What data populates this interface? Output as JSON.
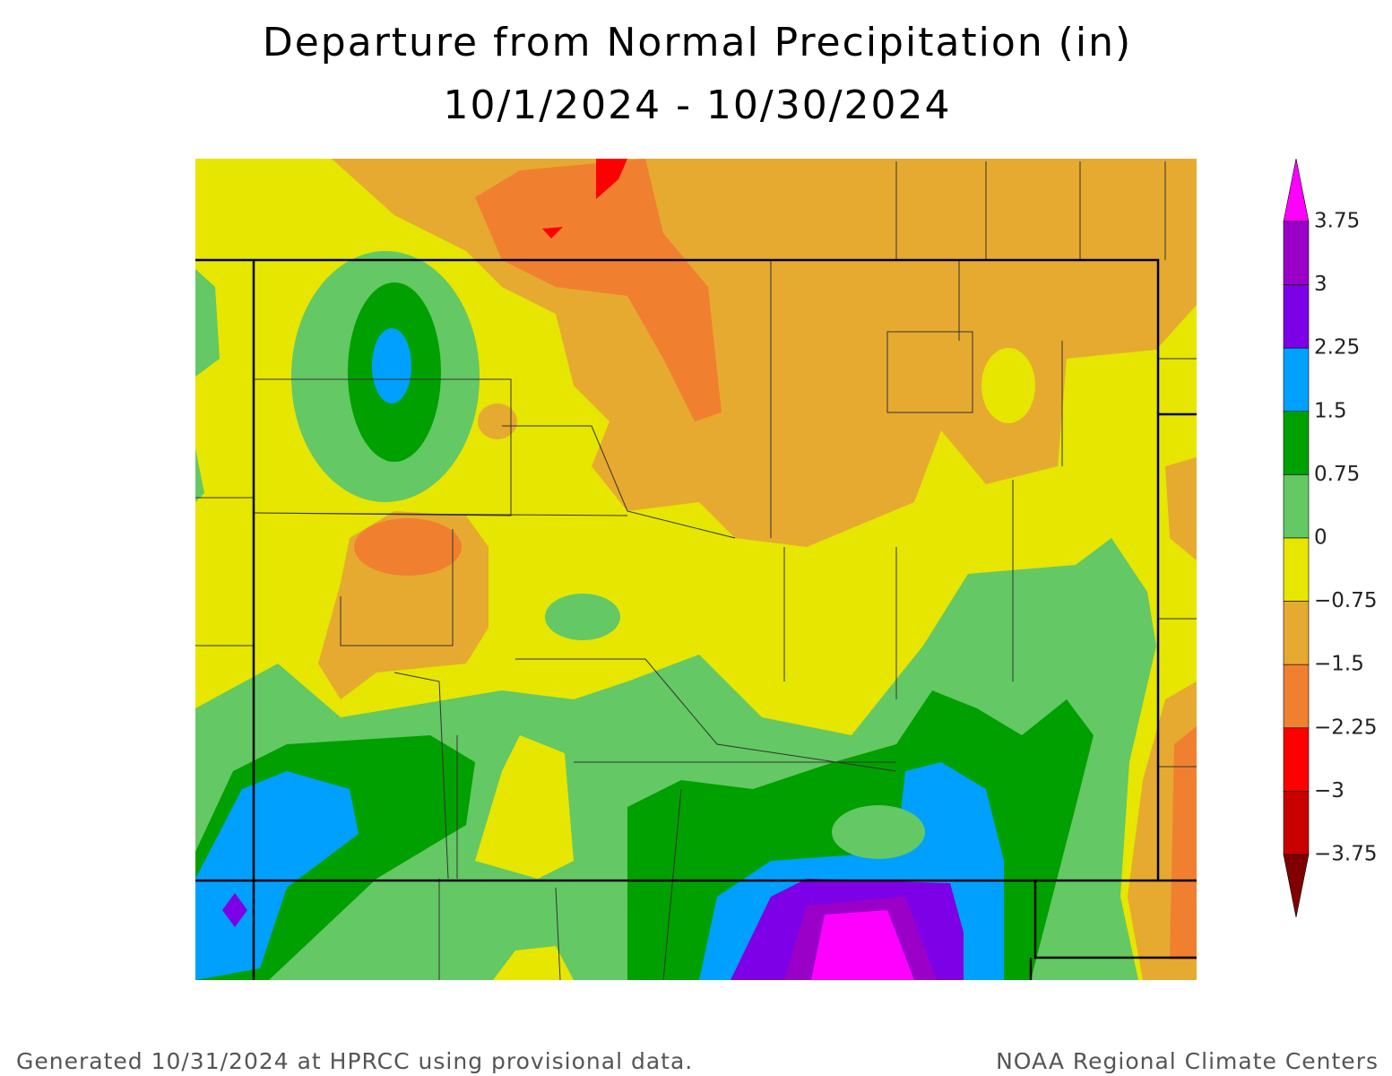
{
  "title": [
    "Departure from Normal Precipitation (in)",
    "10/1/2024 - 10/30/2024"
  ],
  "legend": {
    "labels": [
      "3.75",
      "3",
      "2.25",
      "1.5",
      "0.75",
      "0",
      "−0.75",
      "−1.5",
      "−2.25",
      "−3",
      "−3.75"
    ],
    "colors": [
      "#ff00ff",
      "#9b00c8",
      "#7d00e6",
      "#00a0ff",
      "#00a000",
      "#64c864",
      "#e6e600",
      "#e6aa30",
      "#f08030",
      "#ff0000",
      "#c80000",
      "#800000"
    ]
  },
  "footer": {
    "left": "Generated 10/31/2024 at HPRCC using provisional data.",
    "right": "NOAA Regional Climate Centers"
  }
}
